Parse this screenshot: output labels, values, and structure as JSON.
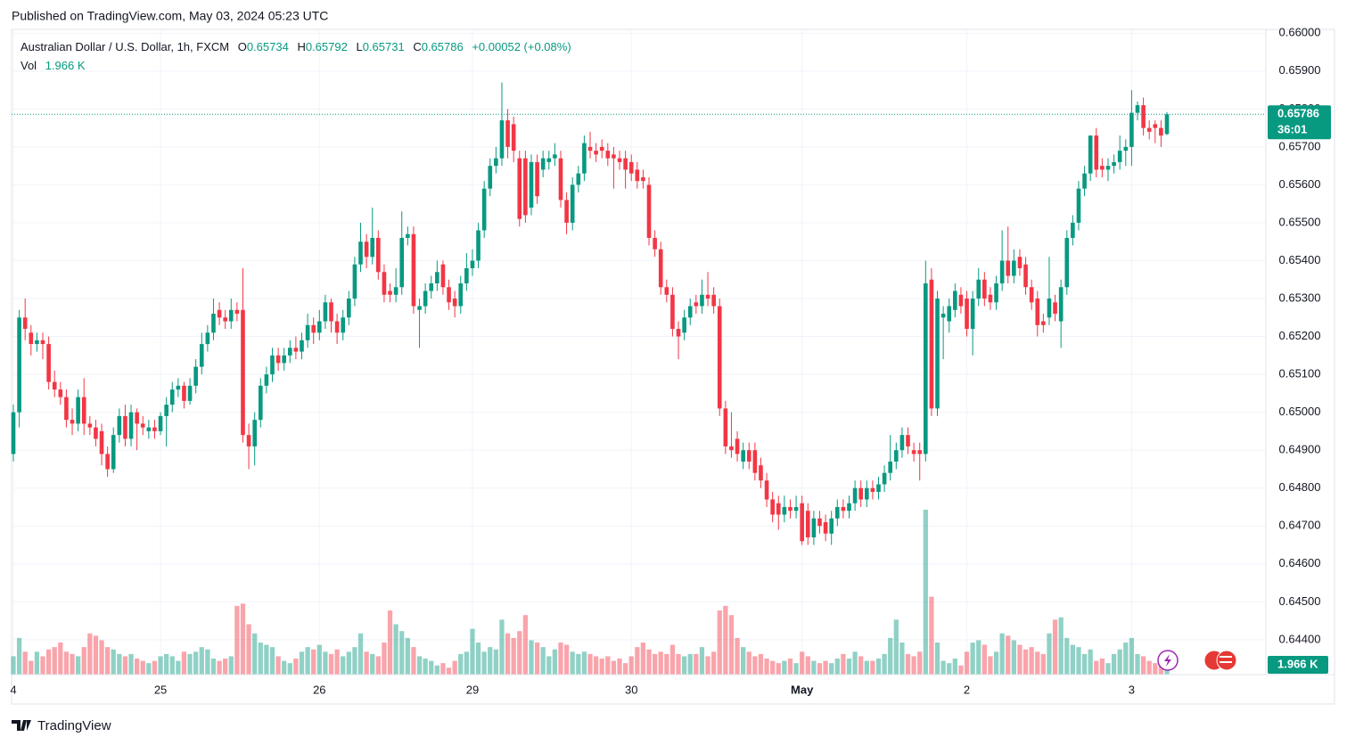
{
  "chart_data": {
    "type": "candlestick",
    "published": "Published on TradingView.com, May 03, 2024 05:23 UTC",
    "title": "Australian Dollar / U.S. Dollar, 1h, FXCM",
    "open_label": "O",
    "high_label": "H",
    "low_label": "L",
    "close_label": "C",
    "change_label": "+0.00052 (+0.08%)",
    "volume_title": "Vol",
    "volume_label": "1.966 K",
    "countdown": "36:01",
    "brand": "TradingView",
    "up_color": "#089981",
    "down_color": "#f23645",
    "up_volume_color": "rgba(8,153,129,0.45)",
    "down_volume_color": "rgba(242,54,69,0.45)",
    "grid": true,
    "ylim": [
      0.64308,
      0.6601
    ],
    "yticks": [
      {
        "value": 0.644,
        "label": "0.64400"
      },
      {
        "value": 0.645,
        "label": "0.64500"
      },
      {
        "value": 0.646,
        "label": "0.64600"
      },
      {
        "value": 0.647,
        "label": "0.64700"
      },
      {
        "value": 0.648,
        "label": "0.64800"
      },
      {
        "value": 0.649,
        "label": "0.64900"
      },
      {
        "value": 0.65,
        "label": "0.65000"
      },
      {
        "value": 0.651,
        "label": "0.65100"
      },
      {
        "value": 0.652,
        "label": "0.65200"
      },
      {
        "value": 0.653,
        "label": "0.65300"
      },
      {
        "value": 0.654,
        "label": "0.65400"
      },
      {
        "value": 0.655,
        "label": "0.65500"
      },
      {
        "value": 0.656,
        "label": "0.65600"
      },
      {
        "value": 0.657,
        "label": "0.65700"
      },
      {
        "value": 0.658,
        "label": "0.65800"
      },
      {
        "value": 0.659,
        "label": "0.65900"
      },
      {
        "value": 0.66,
        "label": "0.66000"
      }
    ],
    "categories": [
      "4",
      null,
      null,
      null,
      null,
      null,
      null,
      null,
      null,
      null,
      null,
      null,
      null,
      null,
      null,
      null,
      null,
      null,
      null,
      null,
      null,
      null,
      null,
      null,
      null,
      "25",
      null,
      null,
      null,
      null,
      null,
      null,
      null,
      null,
      null,
      null,
      null,
      null,
      null,
      null,
      null,
      null,
      null,
      null,
      null,
      null,
      null,
      null,
      null,
      null,
      null,
      null,
      "26",
      null,
      null,
      null,
      null,
      null,
      null,
      null,
      null,
      null,
      null,
      null,
      null,
      null,
      null,
      null,
      null,
      null,
      null,
      null,
      null,
      null,
      null,
      null,
      null,
      null,
      "29",
      null,
      null,
      null,
      null,
      null,
      null,
      null,
      null,
      null,
      null,
      null,
      null,
      null,
      null,
      null,
      null,
      null,
      null,
      null,
      null,
      null,
      null,
      null,
      null,
      null,
      null,
      "30",
      null,
      null,
      null,
      null,
      null,
      null,
      null,
      null,
      null,
      null,
      null,
      null,
      null,
      null,
      null,
      null,
      null,
      null,
      null,
      null,
      null,
      null,
      null,
      null,
      null,
      null,
      null,
      null,
      "May",
      null,
      null,
      null,
      null,
      null,
      null,
      null,
      null,
      null,
      null,
      null,
      null,
      null,
      null,
      null,
      null,
      null,
      null,
      null,
      null,
      null,
      null,
      null,
      null,
      null,
      null,
      null,
      "2",
      null,
      null,
      null,
      null,
      null,
      null,
      null,
      null,
      null,
      null,
      null,
      null,
      null,
      null,
      null,
      null,
      null,
      null,
      null,
      null,
      null,
      null,
      null,
      null,
      null,
      null,
      null,
      "3",
      null,
      null,
      null,
      null,
      null,
      null
    ],
    "open": [
      0.6489,
      0.65,
      0.6525,
      0.6521,
      0.6518,
      0.6519,
      0.6518,
      0.6508,
      0.6506,
      0.6504,
      0.6498,
      0.6497,
      0.6504,
      0.6497,
      0.6496,
      0.6495,
      0.6489,
      0.6485,
      0.6494,
      0.6499,
      0.6493,
      0.65,
      0.6497,
      0.6495,
      0.6496,
      0.6495,
      0.6499,
      0.6502,
      0.6506,
      0.6507,
      0.6503,
      0.6507,
      0.6512,
      0.6518,
      0.6521,
      0.6527,
      0.6525,
      0.6524,
      0.6527,
      0.6527,
      0.6494,
      0.6491,
      0.6498,
      0.6507,
      0.651,
      0.6515,
      0.6513,
      0.6515,
      0.6517,
      0.6516,
      0.6519,
      0.6523,
      0.6521,
      0.6524,
      0.6529,
      0.6524,
      0.6521,
      0.6525,
      0.653,
      0.6539,
      0.6545,
      0.6541,
      0.6546,
      0.6537,
      0.6532,
      0.6531,
      0.6533,
      0.6546,
      0.6547,
      0.6527,
      0.6528,
      0.6532,
      0.6534,
      0.6539,
      0.6533,
      0.653,
      0.6528,
      0.6534,
      0.6538,
      0.654,
      0.6548,
      0.6559,
      0.6565,
      0.6567,
      0.6577,
      0.6576,
      0.6567,
      0.6567,
      0.6554,
      0.6566,
      0.6564,
      0.6566,
      0.6567,
      0.6567,
      0.6556,
      0.655,
      0.656,
      0.6563,
      0.657,
      0.6569,
      0.657,
      0.6569,
      0.6568,
      0.6567,
      0.6567,
      0.6566,
      0.6564,
      0.6562,
      0.656,
      0.6546,
      0.6543,
      0.6533,
      0.6531,
      0.6522,
      0.6521,
      0.6525,
      0.6529,
      0.6528,
      0.6531,
      0.6531,
      0.6528,
      0.6501,
      0.6491,
      0.6493,
      0.6487,
      0.649,
      0.649,
      0.6486,
      0.6482,
      0.6477,
      0.6476,
      0.6473,
      0.6475,
      0.6474,
      0.6476,
      0.6474,
      0.6467,
      0.6472,
      0.6471,
      0.6468,
      0.6472,
      0.6475,
      0.6474,
      0.6476,
      0.648,
      0.6477,
      0.648,
      0.6479,
      0.6481,
      0.6484,
      0.6487,
      0.649,
      0.6494,
      0.649,
      0.649,
      0.6489,
      0.6535,
      0.6501,
      0.6525,
      0.6524,
      0.6527,
      0.6531,
      0.653,
      0.6522,
      0.653,
      0.6535,
      0.6531,
      0.6529,
      0.6534,
      0.654,
      0.6536,
      0.6541,
      0.6539,
      0.6533,
      0.653,
      0.6524,
      0.6525,
      0.6529,
      0.6524,
      0.6533,
      0.6546,
      0.655,
      0.6559,
      0.6563,
      0.6573,
      0.6565,
      0.6564,
      0.6565,
      0.6566,
      0.6569,
      0.657,
      0.6579,
      0.6581,
      0.6575,
      0.6576,
      0.6575,
      0.65734
    ],
    "high": [
      0.6502,
      0.6527,
      0.653,
      0.6523,
      0.6521,
      0.6521,
      0.652,
      0.6511,
      0.6508,
      0.6506,
      0.6501,
      0.6506,
      0.6509,
      0.6499,
      0.6498,
      0.6497,
      0.6491,
      0.6496,
      0.6501,
      0.6502,
      0.6502,
      0.6501,
      0.6499,
      0.6498,
      0.6498,
      0.65,
      0.6504,
      0.6508,
      0.6509,
      0.6508,
      0.6509,
      0.6514,
      0.6521,
      0.6523,
      0.653,
      0.6529,
      0.6527,
      0.653,
      0.6529,
      0.6538,
      0.6497,
      0.65,
      0.6509,
      0.6512,
      0.6517,
      0.6517,
      0.6517,
      0.6519,
      0.652,
      0.6521,
      0.6526,
      0.6525,
      0.6527,
      0.6531,
      0.653,
      0.6526,
      0.6527,
      0.6532,
      0.6541,
      0.655,
      0.6547,
      0.6554,
      0.6548,
      0.6539,
      0.6534,
      0.6538,
      0.6553,
      0.6549,
      0.6549,
      0.653,
      0.6534,
      0.6536,
      0.654,
      0.654,
      0.6535,
      0.6532,
      0.6536,
      0.6542,
      0.6543,
      0.655,
      0.6561,
      0.6567,
      0.657,
      0.6587,
      0.658,
      0.6578,
      0.6569,
      0.6569,
      0.6568,
      0.6568,
      0.6569,
      0.6569,
      0.6571,
      0.6569,
      0.6558,
      0.6562,
      0.6565,
      0.6573,
      0.6574,
      0.6571,
      0.6572,
      0.6571,
      0.657,
      0.6569,
      0.6569,
      0.6568,
      0.6566,
      0.6564,
      0.6562,
      0.6548,
      0.6545,
      0.6535,
      0.6533,
      0.6524,
      0.6527,
      0.653,
      0.6531,
      0.6535,
      0.6537,
      0.6533,
      0.653,
      0.6503,
      0.65,
      0.6495,
      0.6492,
      0.6492,
      0.6492,
      0.6488,
      0.6484,
      0.6479,
      0.6478,
      0.6478,
      0.6477,
      0.6478,
      0.6478,
      0.6476,
      0.6474,
      0.6474,
      0.6473,
      0.6474,
      0.6477,
      0.6477,
      0.6478,
      0.6482,
      0.6482,
      0.6482,
      0.6482,
      0.6483,
      0.6486,
      0.6494,
      0.6492,
      0.6496,
      0.6496,
      0.6492,
      0.6492,
      0.654,
      0.6538,
      0.6532,
      0.6528,
      0.653,
      0.6534,
      0.6533,
      0.6532,
      0.6532,
      0.6538,
      0.6537,
      0.6533,
      0.6536,
      0.6548,
      0.6549,
      0.6543,
      0.6543,
      0.6541,
      0.6535,
      0.6532,
      0.6526,
      0.6541,
      0.6531,
      0.6535,
      0.6548,
      0.6552,
      0.6561,
      0.6565,
      0.6573,
      0.6575,
      0.6567,
      0.6567,
      0.6568,
      0.6573,
      0.6572,
      0.6585,
      0.6582,
      0.6583,
      0.6577,
      0.6577,
      0.6577,
      0.65792
    ],
    "low": [
      0.6487,
      0.6496,
      0.6519,
      0.6515,
      0.6516,
      0.6514,
      0.6506,
      0.6504,
      0.6502,
      0.6496,
      0.6494,
      0.6495,
      0.6494,
      0.6494,
      0.6491,
      0.6486,
      0.6483,
      0.6484,
      0.6492,
      0.6491,
      0.6491,
      0.649,
      0.6494,
      0.6493,
      0.6493,
      0.6494,
      0.6491,
      0.65,
      0.6504,
      0.6501,
      0.6502,
      0.6505,
      0.651,
      0.6516,
      0.6519,
      0.6523,
      0.6522,
      0.6522,
      0.6524,
      0.6492,
      0.6485,
      0.6486,
      0.6496,
      0.6505,
      0.6508,
      0.6511,
      0.6511,
      0.6513,
      0.6514,
      0.6514,
      0.6517,
      0.6518,
      0.6519,
      0.6522,
      0.6521,
      0.6518,
      0.6519,
      0.6523,
      0.6528,
      0.6537,
      0.6538,
      0.6539,
      0.6535,
      0.6529,
      0.6529,
      0.6529,
      0.6531,
      0.6544,
      0.6526,
      0.6517,
      0.6526,
      0.653,
      0.6532,
      0.6531,
      0.6527,
      0.6525,
      0.6526,
      0.6532,
      0.6536,
      0.6538,
      0.6546,
      0.6557,
      0.6563,
      0.6565,
      0.6567,
      0.6566,
      0.6549,
      0.655,
      0.6552,
      0.6555,
      0.6562,
      0.6564,
      0.6565,
      0.6554,
      0.6547,
      0.6548,
      0.6558,
      0.6561,
      0.6567,
      0.6566,
      0.6567,
      0.6565,
      0.6559,
      0.6564,
      0.6559,
      0.6561,
      0.6559,
      0.6559,
      0.6544,
      0.6541,
      0.6531,
      0.6529,
      0.652,
      0.6514,
      0.6519,
      0.6523,
      0.6526,
      0.6526,
      0.6528,
      0.6526,
      0.6499,
      0.6489,
      0.6488,
      0.6487,
      0.6485,
      0.6485,
      0.6482,
      0.648,
      0.6475,
      0.6471,
      0.6469,
      0.6471,
      0.6472,
      0.6472,
      0.6465,
      0.6465,
      0.6465,
      0.6468,
      0.6466,
      0.6465,
      0.647,
      0.6472,
      0.6472,
      0.6474,
      0.6475,
      0.6475,
      0.6477,
      0.6477,
      0.6479,
      0.6482,
      0.6485,
      0.6488,
      0.6489,
      0.6487,
      0.6482,
      0.6487,
      0.6499,
      0.6499,
      0.6514,
      0.6521,
      0.6525,
      0.6526,
      0.652,
      0.6515,
      0.6528,
      0.6528,
      0.6527,
      0.6527,
      0.6532,
      0.6534,
      0.6534,
      0.6536,
      0.6531,
      0.6527,
      0.652,
      0.6521,
      0.6523,
      0.6524,
      0.6517,
      0.6531,
      0.6544,
      0.6548,
      0.6557,
      0.6561,
      0.6562,
      0.6562,
      0.6561,
      0.6563,
      0.6564,
      0.6565,
      0.6565,
      0.6577,
      0.6573,
      0.6572,
      0.6571,
      0.657,
      0.65731
    ],
    "close": [
      0.65,
      0.6525,
      0.6522,
      0.6518,
      0.6519,
      0.6518,
      0.6508,
      0.6506,
      0.6504,
      0.6498,
      0.6497,
      0.6504,
      0.6497,
      0.6496,
      0.6493,
      0.6489,
      0.6485,
      0.6494,
      0.6499,
      0.6493,
      0.65,
      0.6497,
      0.6496,
      0.6496,
      0.6495,
      0.6499,
      0.6502,
      0.6506,
      0.6507,
      0.6503,
      0.6507,
      0.6512,
      0.6518,
      0.6521,
      0.6526,
      0.6525,
      0.6524,
      0.6527,
      0.6526,
      0.6494,
      0.6491,
      0.6498,
      0.6507,
      0.651,
      0.6515,
      0.6513,
      0.6515,
      0.6517,
      0.6516,
      0.6519,
      0.6523,
      0.6521,
      0.6524,
      0.6529,
      0.6524,
      0.6521,
      0.6525,
      0.653,
      0.6539,
      0.6545,
      0.6541,
      0.6546,
      0.6537,
      0.6531,
      0.6531,
      0.6533,
      0.6546,
      0.6547,
      0.6528,
      0.6528,
      0.6532,
      0.6534,
      0.6537,
      0.6533,
      0.6529,
      0.6528,
      0.6534,
      0.6538,
      0.654,
      0.6548,
      0.6559,
      0.6565,
      0.6567,
      0.6577,
      0.657,
      0.6569,
      0.6551,
      0.6552,
      0.6566,
      0.6557,
      0.6567,
      0.6567,
      0.6568,
      0.6556,
      0.655,
      0.656,
      0.6563,
      0.6571,
      0.6569,
      0.6568,
      0.6569,
      0.6567,
      0.6567,
      0.6566,
      0.6564,
      0.6563,
      0.6561,
      0.6561,
      0.6546,
      0.6543,
      0.6533,
      0.6531,
      0.6522,
      0.652,
      0.6525,
      0.6528,
      0.6528,
      0.6531,
      0.653,
      0.6528,
      0.6501,
      0.6491,
      0.649,
      0.6489,
      0.649,
      0.6487,
      0.6484,
      0.6482,
      0.6477,
      0.6473,
      0.6473,
      0.6475,
      0.6474,
      0.6475,
      0.6466,
      0.6467,
      0.6472,
      0.647,
      0.6468,
      0.6472,
      0.6475,
      0.6474,
      0.6476,
      0.648,
      0.6477,
      0.648,
      0.6479,
      0.6481,
      0.6484,
      0.6487,
      0.649,
      0.6494,
      0.6491,
      0.6489,
      0.6489,
      0.6534,
      0.6501,
      0.653,
      0.6526,
      0.6528,
      0.6532,
      0.6528,
      0.6522,
      0.653,
      0.6535,
      0.653,
      0.6529,
      0.6534,
      0.654,
      0.6536,
      0.654,
      0.6538,
      0.6533,
      0.6529,
      0.6523,
      0.6523,
      0.653,
      0.6526,
      0.6533,
      0.6546,
      0.655,
      0.6559,
      0.6563,
      0.6573,
      0.6564,
      0.6564,
      0.6565,
      0.6566,
      0.6569,
      0.657,
      0.6579,
      0.6581,
      0.6575,
      0.6574,
      0.6575,
      0.6573,
      0.65786
    ],
    "volume": [
      4000,
      8000,
      5000,
      3000,
      5000,
      4000,
      5500,
      6000,
      7000,
      5000,
      4500,
      4000,
      6000,
      9000,
      8500,
      7500,
      6000,
      5500,
      4500,
      4000,
      4500,
      3500,
      3000,
      2500,
      3000,
      4000,
      4500,
      4000,
      3000,
      5000,
      4500,
      5000,
      6000,
      5500,
      3500,
      3000,
      3500,
      4000,
      15000,
      15500,
      11000,
      9000,
      7000,
      6500,
      6000,
      4000,
      3000,
      2500,
      3500,
      5000,
      6000,
      5500,
      6500,
      5000,
      4500,
      5500,
      4000,
      5000,
      6000,
      9000,
      5000,
      4500,
      4000,
      7000,
      14000,
      11000,
      9500,
      8000,
      6000,
      4000,
      3500,
      3000,
      2000,
      2500,
      1500,
      3000,
      4500,
      5000,
      10000,
      7000,
      5000,
      6000,
      5500,
      12000,
      9000,
      8000,
      9500,
      13000,
      7500,
      7000,
      6000,
      4000,
      5500,
      7000,
      6500,
      5000,
      4500,
      5000,
      4500,
      4000,
      3500,
      4000,
      3000,
      3500,
      2500,
      4000,
      6000,
      7000,
      5500,
      4500,
      5000,
      4500,
      6500,
      4500,
      4000,
      4500,
      4500,
      6000,
      4000,
      5000,
      14000,
      15000,
      13000,
      8000,
      6000,
      5000,
      4000,
      4500,
      3500,
      3000,
      2500,
      3000,
      3500,
      2500,
      5000,
      4000,
      3000,
      2500,
      3000,
      2500,
      3500,
      4500,
      3500,
      5000,
      4000,
      3000,
      3000,
      3500,
      4500,
      8000,
      12000,
      7000,
      4500,
      4000,
      5000,
      36000,
      17000,
      7000,
      3000,
      2500,
      3500,
      2000,
      5000,
      7000,
      7500,
      6500,
      4000,
      5000,
      9000,
      8500,
      7500,
      6500,
      5500,
      6000,
      5000,
      4500,
      9000,
      12000,
      12500,
      8000,
      6500,
      6000,
      4500,
      5500,
      3000,
      3500,
      2500,
      4500,
      5500,
      7000,
      8000,
      4500,
      4000,
      3000,
      2500,
      3500,
      1966
    ]
  }
}
